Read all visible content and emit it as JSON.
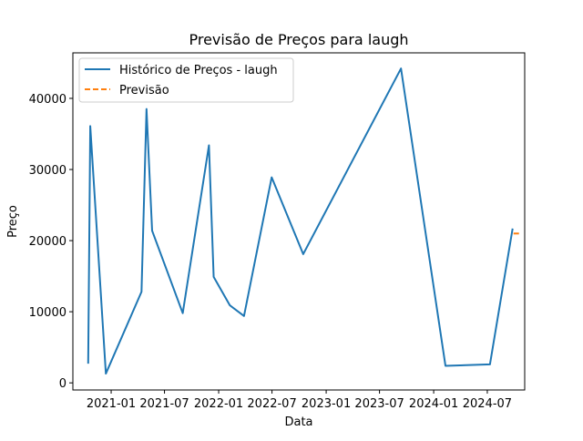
{
  "chart_data": {
    "type": "line",
    "title": "Previsão de Preços para laugh",
    "xlabel": "Data",
    "ylabel": "Preço",
    "x_tick_labels": [
      "2021-01",
      "2021-07",
      "2022-01",
      "2022-07",
      "2023-01",
      "2023-07",
      "2024-01",
      "2024-07"
    ],
    "x_tick_dates": [
      "2021-01-01",
      "2021-07-01",
      "2022-01-01",
      "2022-07-01",
      "2023-01-01",
      "2023-07-01",
      "2024-01-01",
      "2024-07-01"
    ],
    "y_ticks": [
      0,
      10000,
      20000,
      30000,
      40000
    ],
    "xlim": [
      "2020-08-24",
      "2024-11-05"
    ],
    "ylim": [
      -1000,
      46400
    ],
    "grid": false,
    "legend": "upper-left",
    "series": [
      {
        "name": "Histórico de Preços - laugh",
        "color": "#1f77b4",
        "style": "solid",
        "x": [
          "2020-10-15",
          "2020-10-22",
          "2020-12-14",
          "2021-04-14",
          "2021-05-01",
          "2021-05-20",
          "2021-09-01",
          "2021-11-29",
          "2021-12-15",
          "2022-02-08",
          "2022-03-28",
          "2022-06-30",
          "2022-10-15",
          "2023-09-12",
          "2024-02-10",
          "2024-07-10",
          "2024-09-25"
        ],
        "y": [
          2700,
          36100,
          1300,
          12800,
          38500,
          21400,
          9800,
          33400,
          14900,
          10900,
          9400,
          28900,
          18100,
          44200,
          2400,
          2600,
          21700
        ]
      },
      {
        "name": "Previsão",
        "color": "#ff7f0e",
        "style": "dashed",
        "x": [
          "2024-09-28",
          "2024-10-22"
        ],
        "y": [
          21000,
          21000
        ]
      }
    ]
  }
}
